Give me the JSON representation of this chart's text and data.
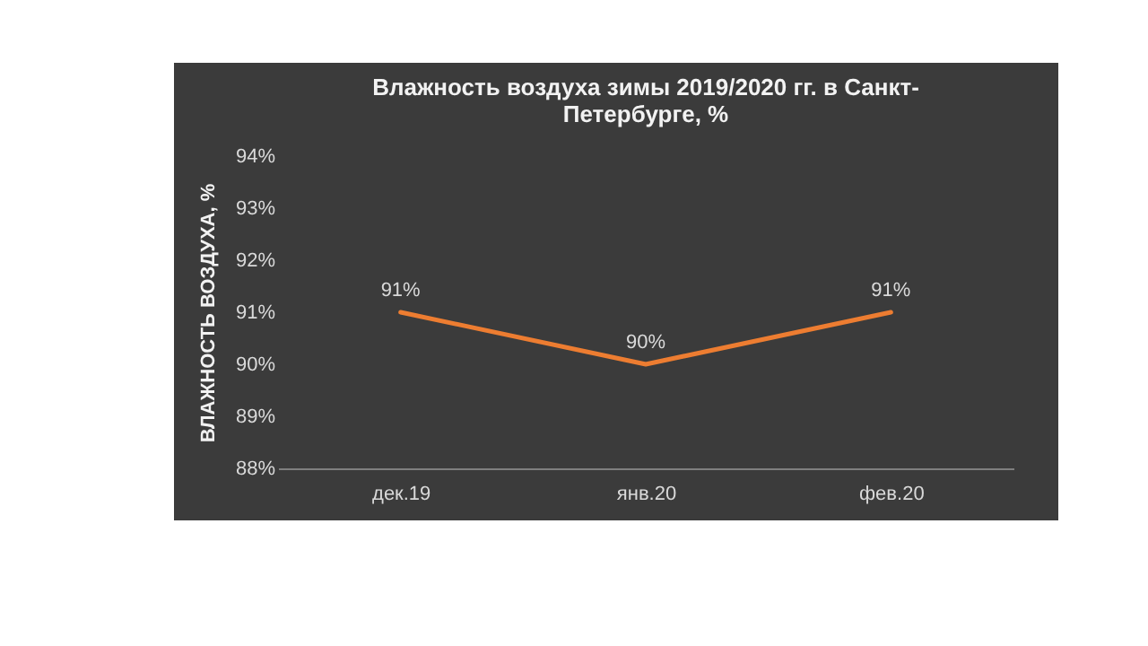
{
  "chart_data": {
    "type": "line",
    "title": "Влажность воздуха зимы 2019/2020 гг. в Санкт-Петербурге, %",
    "ylabel": "ВЛАЖНОСТЬ ВОЗДУХА, %",
    "categories": [
      "дек.19",
      "янв.20",
      "фев.20"
    ],
    "series": [
      {
        "color": "#ed7d31",
        "values": [
          91,
          90,
          91
        ],
        "value_labels": [
          "91%",
          "90%",
          "91%"
        ]
      }
    ],
    "ylim": [
      88,
      94
    ],
    "yticks": [
      {
        "value": 88,
        "label": "88%"
      },
      {
        "value": 89,
        "label": "89%"
      },
      {
        "value": 90,
        "label": "90%"
      },
      {
        "value": 91,
        "label": "91%"
      },
      {
        "value": 92,
        "label": "92%"
      },
      {
        "value": 93,
        "label": "93%"
      },
      {
        "value": 94,
        "label": "94%"
      }
    ],
    "grid": false,
    "marker": "none",
    "line_style": "solid"
  }
}
